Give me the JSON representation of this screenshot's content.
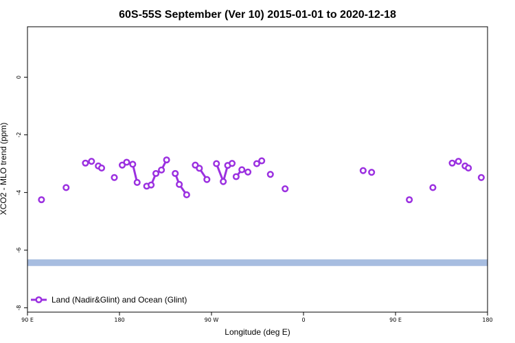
{
  "chart_data": {
    "type": "line",
    "title": "60S-55S September (Ver 10)   2015-01-01 to 2020-12-18",
    "xlabel": "Longitude (deg E)",
    "ylabel": "XCO2 - MLO trend (ppm)",
    "xlim": [
      90,
      340
    ],
    "ylim": [
      -8.15,
      1.75
    ],
    "x_ticks": [
      {
        "value": 90,
        "label": "90 E"
      },
      {
        "value": 140,
        "label": "180"
      },
      {
        "value": 190,
        "label": "90 W"
      },
      {
        "value": 240,
        "label": "0"
      },
      {
        "value": 290,
        "label": "90 E"
      },
      {
        "value": 340,
        "label": "180"
      }
    ],
    "y_ticks": [
      {
        "value": 0,
        "label": "0"
      },
      {
        "value": -2,
        "label": "-2"
      },
      {
        "value": -4,
        "label": "-4"
      },
      {
        "value": -6,
        "label": "-6"
      },
      {
        "value": -8,
        "label": "-8"
      }
    ],
    "band": {
      "y_min": -6.55,
      "y_max": -6.32,
      "color": "#a7bde0"
    },
    "grid": false,
    "legend_position": "bottom-left",
    "series": [
      {
        "name": "Land (Nadir&Glint) and Ocean (Glint)",
        "color": "#9b30e0",
        "segments": [
          [
            {
              "x": 97.6,
              "y": -4.25
            }
          ],
          [
            {
              "x": 111.0,
              "y": -3.83
            }
          ],
          [
            {
              "x": 121.5,
              "y": -2.98
            },
            {
              "x": 124.8,
              "y": -2.92
            }
          ],
          [
            {
              "x": 128.5,
              "y": -3.08
            },
            {
              "x": 130.3,
              "y": -3.15
            }
          ],
          [
            {
              "x": 137.2,
              "y": -3.48
            }
          ],
          [
            {
              "x": 141.5,
              "y": -3.05
            },
            {
              "x": 143.9,
              "y": -2.95
            },
            {
              "x": 147.2,
              "y": -3.02
            },
            {
              "x": 149.6,
              "y": -3.65
            }
          ],
          [
            {
              "x": 154.8,
              "y": -3.78
            },
            {
              "x": 157.2,
              "y": -3.74
            },
            {
              "x": 159.8,
              "y": -3.34
            },
            {
              "x": 162.8,
              "y": -3.22
            },
            {
              "x": 165.6,
              "y": -2.87
            }
          ],
          [
            {
              "x": 170.3,
              "y": -3.34
            },
            {
              "x": 172.5,
              "y": -3.72
            },
            {
              "x": 176.5,
              "y": -4.08
            }
          ],
          [
            {
              "x": 181.2,
              "y": -3.05
            },
            {
              "x": 183.4,
              "y": -3.16
            },
            {
              "x": 187.5,
              "y": -3.55
            }
          ],
          [
            {
              "x": 192.7,
              "y": -3.0
            },
            {
              "x": 196.4,
              "y": -3.62
            },
            {
              "x": 198.8,
              "y": -3.06
            },
            {
              "x": 201.2,
              "y": -2.99
            }
          ],
          [
            {
              "x": 203.4,
              "y": -3.45
            },
            {
              "x": 206.5,
              "y": -3.21
            },
            {
              "x": 209.8,
              "y": -3.29
            }
          ],
          [
            {
              "x": 214.6,
              "y": -3.0
            },
            {
              "x": 217.3,
              "y": -2.9
            }
          ],
          [
            {
              "x": 222.0,
              "y": -3.37
            }
          ],
          [
            {
              "x": 230.0,
              "y": -3.87
            }
          ],
          [
            {
              "x": 272.4,
              "y": -3.24
            }
          ],
          [
            {
              "x": 277.0,
              "y": -3.3
            }
          ],
          [
            {
              "x": 297.5,
              "y": -4.25
            }
          ],
          [
            {
              "x": 310.3,
              "y": -3.83
            }
          ],
          [
            {
              "x": 320.8,
              "y": -2.98
            },
            {
              "x": 324.2,
              "y": -2.92
            }
          ],
          [
            {
              "x": 327.8,
              "y": -3.08
            },
            {
              "x": 329.6,
              "y": -3.15
            }
          ],
          [
            {
              "x": 336.6,
              "y": -3.48
            }
          ]
        ]
      }
    ]
  }
}
